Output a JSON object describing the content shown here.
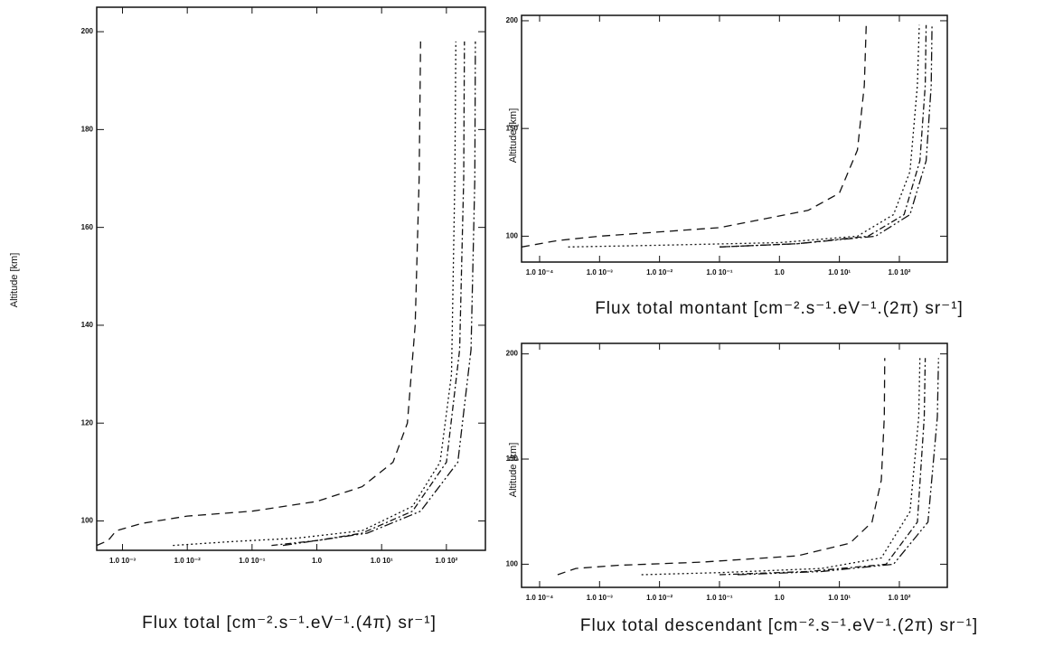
{
  "chart_data": [
    {
      "type": "line",
      "xscale": "log",
      "xlabel": "Flux total [cm⁻².s⁻¹.eV⁻¹.(4π) sr⁻¹]",
      "ylabel": "Altitude [km]",
      "xlim": [
        0.0004,
        400
      ],
      "ylim": [
        94,
        205
      ],
      "xticks": [
        {
          "value": 0.001,
          "label": "1.0 10⁻³"
        },
        {
          "value": 0.01,
          "label": "1.0 10⁻²"
        },
        {
          "value": 0.1,
          "label": "1.0 10⁻¹"
        },
        {
          "value": 1,
          "label": "1.0"
        },
        {
          "value": 10,
          "label": "1.0 10¹"
        },
        {
          "value": 100,
          "label": "1.0 10²"
        }
      ],
      "yticks": [
        100,
        120,
        140,
        160,
        180,
        200
      ],
      "series": [
        {
          "color": "#111111",
          "dash": "9 6",
          "x": [
            0.0004,
            0.0006,
            0.0008,
            0.002,
            0.01,
            0.1,
            1,
            5,
            15,
            25,
            33,
            38,
            40
          ],
          "values": [
            95,
            96,
            98,
            99.5,
            101,
            102,
            104,
            107,
            112,
            120,
            140,
            170,
            198
          ]
        },
        {
          "color": "#111111",
          "dash": "2 3",
          "x": [
            0.006,
            0.05,
            0.5,
            5,
            30,
            80,
            120,
            135,
            140
          ],
          "values": [
            95,
            95.8,
            96.5,
            98,
            103,
            112,
            130,
            170,
            198
          ]
        },
        {
          "color": "#111111",
          "dash": "7 3 2 3",
          "x": [
            0.2,
            1,
            5,
            30,
            100,
            160,
            185,
            190
          ],
          "values": [
            95,
            96,
            97.5,
            102,
            112,
            135,
            170,
            198
          ]
        },
        {
          "color": "#111111",
          "dash": "10 3 2 3 2 3",
          "x": [
            0.3,
            1,
            6,
            40,
            150,
            240,
            275,
            280
          ],
          "values": [
            95,
            96,
            97.5,
            102,
            112,
            135,
            170,
            198
          ]
        }
      ]
    },
    {
      "type": "line",
      "xscale": "log",
      "xlabel": "Flux total montant [cm⁻².s⁻¹.eV⁻¹.(2π) sr⁻¹]",
      "ylabel": "Altitude [km]",
      "xlim": [
        5e-05,
        630
      ],
      "ylim": [
        88,
        202.5
      ],
      "xticks": [
        {
          "value": 0.0001,
          "label": "1.0 10⁻⁴"
        },
        {
          "value": 0.001,
          "label": "1.0 10⁻³"
        },
        {
          "value": 0.01,
          "label": "1.0 10⁻²"
        },
        {
          "value": 0.1,
          "label": "1.0 10⁻¹"
        },
        {
          "value": 1,
          "label": "1.0"
        },
        {
          "value": 10,
          "label": "1.0 10¹"
        },
        {
          "value": 100,
          "label": "1.0 10²"
        }
      ],
      "yticks": [
        100,
        150,
        200
      ],
      "series": [
        {
          "color": "#111111",
          "dash": "9 6",
          "x": [
            5e-05,
            8e-05,
            0.0002,
            0.001,
            0.1,
            3,
            10,
            20,
            26,
            28
          ],
          "values": [
            95,
            96,
            98,
            100,
            104,
            112,
            120,
            140,
            170,
            198
          ]
        },
        {
          "color": "#111111",
          "dash": "2 3",
          "x": [
            0.0003,
            0.01,
            1,
            20,
            80,
            150,
            200,
            215
          ],
          "values": [
            95,
            95.8,
            97,
            100,
            110,
            130,
            170,
            198
          ]
        },
        {
          "color": "#111111",
          "dash": "7 3 2 3",
          "x": [
            0.1,
            2,
            30,
            120,
            220,
            270,
            280
          ],
          "values": [
            95,
            96.5,
            100,
            110,
            135,
            170,
            198
          ]
        },
        {
          "color": "#111111",
          "dash": "10 3 2 3 2 3",
          "x": [
            0.1,
            2,
            40,
            150,
            280,
            340,
            350
          ],
          "values": [
            95,
            96.5,
            100,
            110,
            135,
            170,
            198
          ]
        }
      ]
    },
    {
      "type": "line",
      "xscale": "log",
      "xlabel": "Flux total descendant [cm⁻².s⁻¹.eV⁻¹.(2π) sr⁻¹]",
      "ylabel": "Altitude [km]",
      "xlim": [
        5e-05,
        630
      ],
      "ylim": [
        89,
        205
      ],
      "xticks": [
        {
          "value": 0.0001,
          "label": "1.0 10⁻⁴"
        },
        {
          "value": 0.001,
          "label": "1.0 10⁻³"
        },
        {
          "value": 0.01,
          "label": "1.0 10⁻²"
        },
        {
          "value": 0.1,
          "label": "1.0 10⁻¹"
        },
        {
          "value": 1,
          "label": "1.0"
        },
        {
          "value": 10,
          "label": "1.0 10¹"
        },
        {
          "value": 100,
          "label": "1.0 10²"
        }
      ],
      "yticks": [
        100,
        150,
        200
      ],
      "series": [
        {
          "color": "#111111",
          "dash": "9 6",
          "x": [
            0.0002,
            0.0004,
            0.002,
            0.05,
            2,
            15,
            35,
            50,
            56,
            57
          ],
          "values": [
            95,
            98,
            99.5,
            101,
            104,
            110,
            120,
            140,
            170,
            198
          ]
        },
        {
          "color": "#111111",
          "dash": "2 3",
          "x": [
            0.005,
            0.1,
            5,
            50,
            150,
            210,
            220
          ],
          "values": [
            95,
            96,
            98,
            103,
            125,
            170,
            198
          ]
        },
        {
          "color": "#111111",
          "dash": "7 3 2 3",
          "x": [
            0.1,
            3,
            60,
            200,
            260,
            270
          ],
          "values": [
            95,
            96.5,
            100,
            120,
            170,
            198
          ]
        },
        {
          "color": "#111111",
          "dash": "10 3 2 3 2 3",
          "x": [
            0.2,
            5,
            80,
            300,
            430,
            450
          ],
          "values": [
            95,
            96.5,
            100,
            120,
            170,
            198
          ]
        }
      ]
    }
  ]
}
